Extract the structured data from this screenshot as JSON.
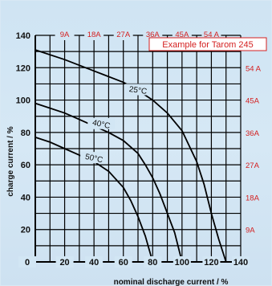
{
  "chart_data": {
    "type": "line",
    "title": "",
    "annotation": "Example for Tarom 245",
    "xlabel": "nominal discharge current / %",
    "ylabel": "charge current / %",
    "xlim": [
      0,
      140
    ],
    "ylim": [
      0,
      140
    ],
    "x_ticks": [
      "0",
      "20",
      "40",
      "60",
      "80",
      "100",
      "120",
      "140"
    ],
    "y_ticks": [
      "20",
      "40",
      "60",
      "80",
      "100",
      "120",
      "140"
    ],
    "ampere_scale_top": [
      "9A",
      "18A",
      "27A",
      "36A",
      "45A",
      "54 A"
    ],
    "ampere_scale_right": [
      "54 A",
      "45A",
      "36A",
      "27A",
      "18A",
      "9A"
    ],
    "grid": true,
    "series": [
      {
        "name": "25°C",
        "points": [
          [
            0,
            131
          ],
          [
            20,
            125
          ],
          [
            40,
            118
          ],
          [
            60,
            111
          ],
          [
            70,
            106
          ],
          [
            80,
            100
          ],
          [
            90,
            92
          ],
          [
            100,
            81
          ],
          [
            110,
            62
          ],
          [
            115,
            48
          ],
          [
            120,
            30
          ],
          [
            125,
            14
          ],
          [
            130,
            0
          ]
        ]
      },
      {
        "name": "40°C",
        "points": [
          [
            0,
            98
          ],
          [
            10,
            95
          ],
          [
            20,
            92
          ],
          [
            30,
            88
          ],
          [
            40,
            84
          ],
          [
            50,
            80
          ],
          [
            60,
            75
          ],
          [
            70,
            67
          ],
          [
            75,
            60
          ],
          [
            80,
            52
          ],
          [
            85,
            42
          ],
          [
            90,
            30
          ],
          [
            95,
            18
          ],
          [
            100,
            0
          ]
        ]
      },
      {
        "name": "50°C",
        "points": [
          [
            0,
            77
          ],
          [
            10,
            74
          ],
          [
            20,
            70
          ],
          [
            30,
            66
          ],
          [
            40,
            62
          ],
          [
            50,
            56
          ],
          [
            60,
            46
          ],
          [
            65,
            38
          ],
          [
            70,
            28
          ],
          [
            75,
            16
          ],
          [
            80,
            0
          ]
        ]
      }
    ],
    "colors": {
      "curves": "#000000",
      "grid": "#000000",
      "ampere_scale": "#d42020",
      "background": "#d2e6f4"
    }
  }
}
